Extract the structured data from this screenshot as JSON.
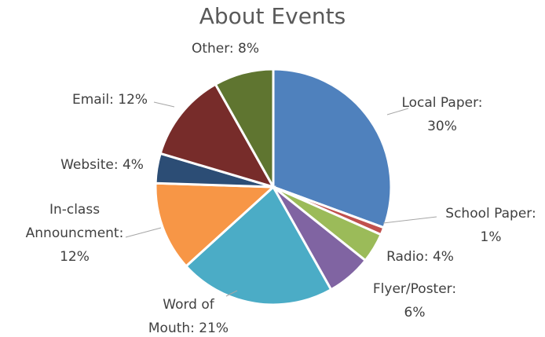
{
  "chart_data": {
    "type": "pie",
    "title": "About Events",
    "values": [
      30,
      1,
      4,
      6,
      21,
      12,
      4,
      12,
      8
    ],
    "value_labels": [
      [
        "Local Paper:",
        "30%"
      ],
      [
        "School Paper:",
        "1%"
      ],
      [
        "Radio: 4%"
      ],
      [
        "Flyer/Poster:",
        "6%"
      ],
      [
        "Word of",
        "Mouth: 21%"
      ],
      [
        "In-class",
        "Announcment:",
        "12%"
      ],
      [
        "Website: 4%"
      ],
      [
        "Email: 12%"
      ],
      [
        "Other: 8%"
      ]
    ],
    "colors": [
      "#4f81bd",
      "#c0504d",
      "#9bbb59",
      "#8064a2",
      "#4bacc6",
      "#f79646",
      "#2c4d75",
      "#772c2a",
      "#5f7530"
    ]
  }
}
